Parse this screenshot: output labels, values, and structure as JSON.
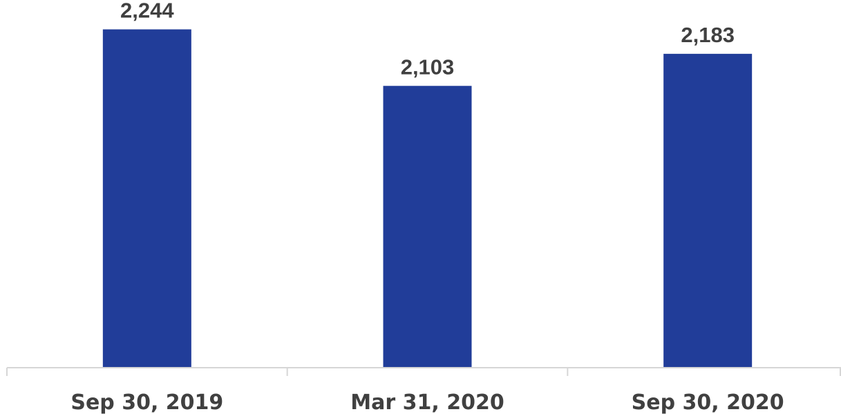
{
  "chart_data": {
    "type": "bar",
    "categories": [
      "Sep 30, 2019",
      "Mar 31, 2020",
      "Sep 30, 2020"
    ],
    "values": [
      2244,
      2103,
      2183
    ],
    "value_labels": [
      "2,244",
      "2,103",
      "2,183"
    ],
    "title": "",
    "xlabel": "",
    "ylabel": "",
    "ylim": [
      1400,
      2300
    ],
    "grid": false,
    "legend": "none",
    "bar_color": "#213d99",
    "label_color": "#404040",
    "axis_color": "#d6d6d6"
  }
}
